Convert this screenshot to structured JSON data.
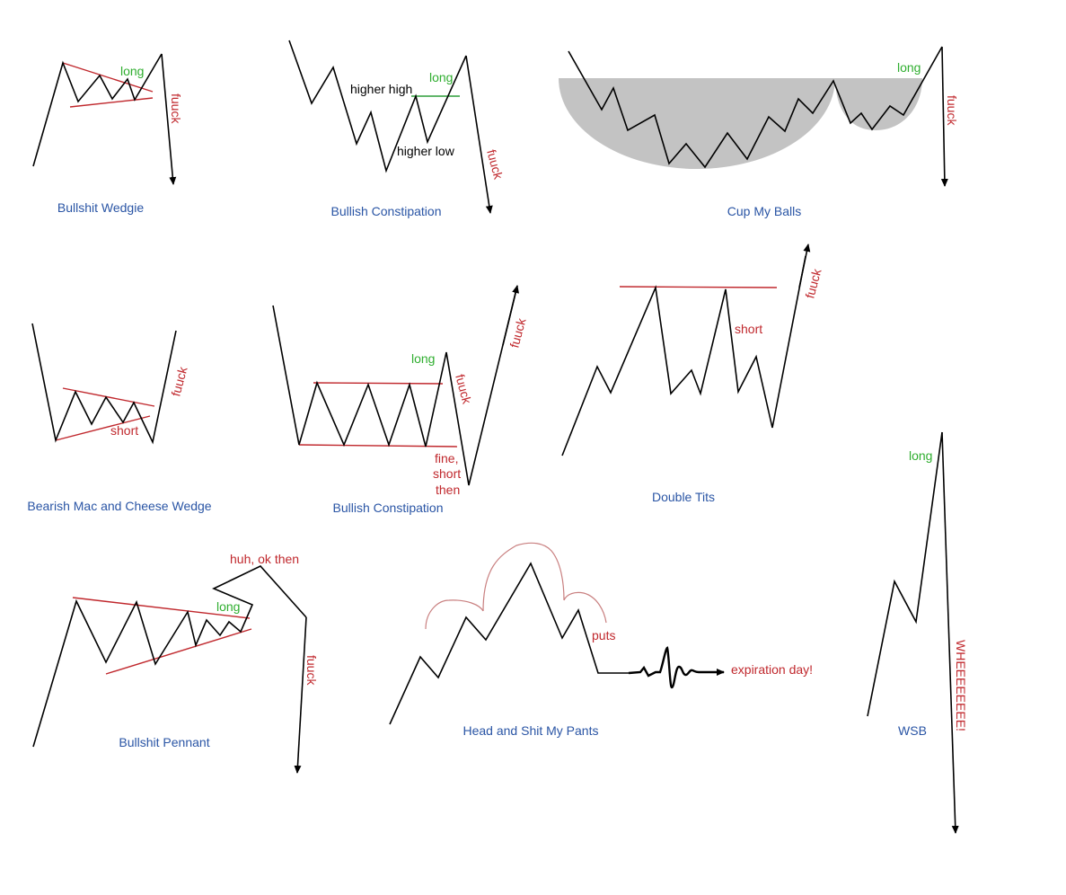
{
  "colors": {
    "line": "#000000",
    "annotation_red": "#c0282d",
    "annotation_green": "#2fae2f",
    "title_blue": "#2a55a5",
    "cup_fill": "#c3c3c3"
  },
  "patterns": [
    {
      "title": "Bullshit Wedgie",
      "long": "long",
      "fuuck": "fuuck"
    },
    {
      "title": "Bullish Constipation",
      "higher_high": "higher high",
      "higher_low": "higher low",
      "long": "long",
      "fuuck": "fuuck"
    },
    {
      "title": "Cup My Balls",
      "long": "long",
      "fuuck": "fuuck"
    },
    {
      "title": "Bearish Mac and Cheese Wedge",
      "short": "short",
      "fuuck": "fuuck"
    },
    {
      "title": "Bullish Constipation",
      "long": "long",
      "fuuck_down": "fuuck",
      "fine": "fine,",
      "short": "short",
      "then": "then",
      "fuuck_up": "fuuck"
    },
    {
      "title": "Double Tits",
      "short": "short",
      "fuuck": "fuuck"
    },
    {
      "title": "Bullshit Pennant",
      "huh": "huh, ok then",
      "long": "long",
      "fuuck": "fuuck"
    },
    {
      "title": "Head and Shit My Pants",
      "puts": "puts",
      "expiration": "expiration day!"
    },
    {
      "title": "WSB",
      "long": "long",
      "whee": "WHEEEEEEEE!"
    }
  ]
}
